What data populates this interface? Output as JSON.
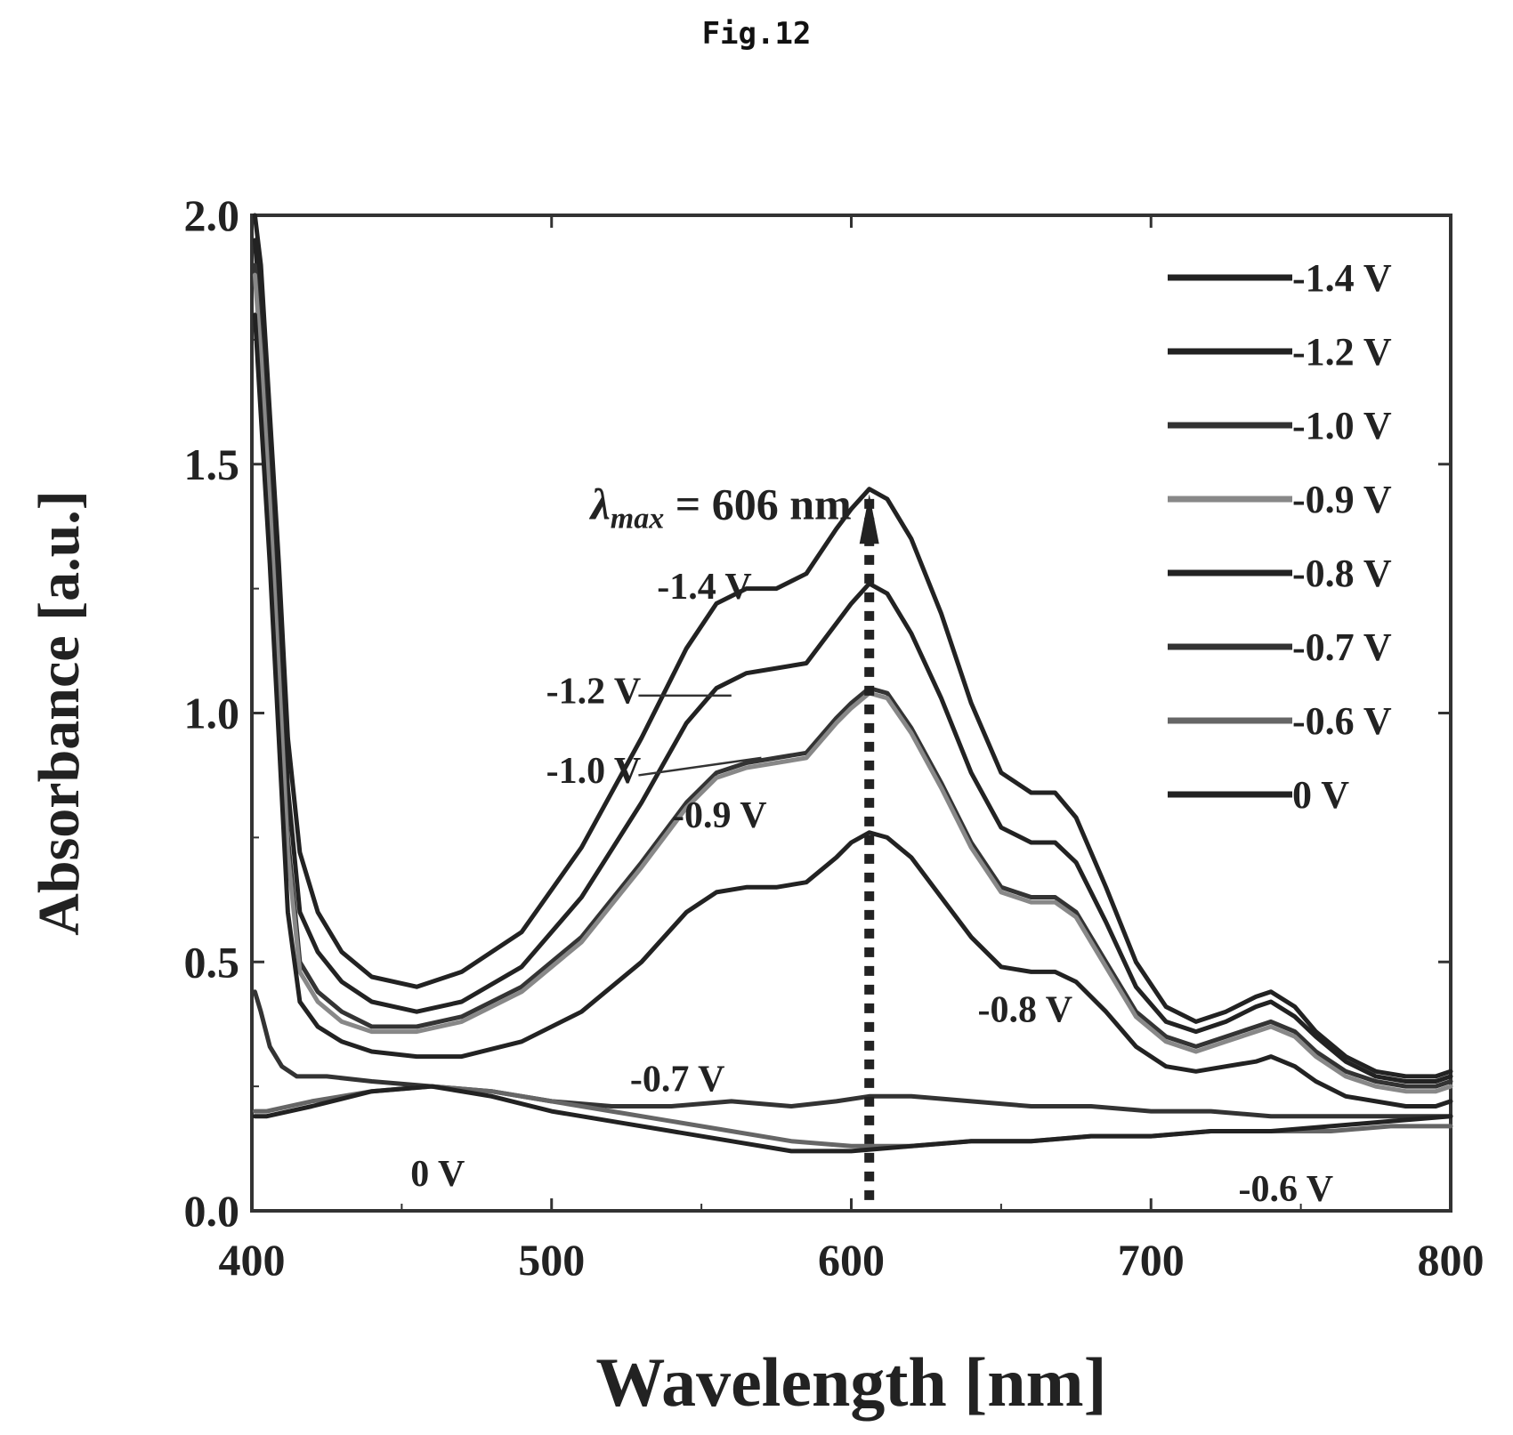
{
  "figure_title": "Fig.12",
  "chart_data": {
    "type": "line",
    "title": "",
    "xlabel": "Wavelength [nm]",
    "ylabel": "Absorbance [a.u.]",
    "xlim": [
      400,
      800
    ],
    "ylim": [
      0.0,
      2.0
    ],
    "xticks": [
      "400",
      "500",
      "600",
      "700",
      "800"
    ],
    "yticks": [
      "0.0",
      "0.5",
      "1.0",
      "1.5",
      "2.0"
    ],
    "grid": false,
    "legend_position": "top-right",
    "peak_annotation": {
      "prefix": "λ",
      "subscript": "max",
      "text": " = 606 nm",
      "x": 606
    },
    "series": [
      {
        "name": "-1.4 V",
        "color": "#222222",
        "x": [
          401,
          403,
          406,
          409,
          412,
          416,
          422,
          430,
          440,
          455,
          470,
          490,
          510,
          530,
          545,
          555,
          565,
          575,
          585,
          595,
          600,
          606,
          612,
          620,
          630,
          640,
          650,
          660,
          668,
          675,
          685,
          695,
          705,
          715,
          725,
          735,
          740,
          748,
          755,
          765,
          775,
          785,
          795,
          800
        ],
        "y": [
          2.0,
          1.9,
          1.6,
          1.3,
          0.95,
          0.72,
          0.6,
          0.52,
          0.47,
          0.45,
          0.48,
          0.56,
          0.73,
          0.95,
          1.13,
          1.22,
          1.25,
          1.25,
          1.28,
          1.37,
          1.41,
          1.45,
          1.43,
          1.35,
          1.2,
          1.02,
          0.88,
          0.84,
          0.84,
          0.79,
          0.65,
          0.5,
          0.41,
          0.38,
          0.4,
          0.43,
          0.44,
          0.41,
          0.36,
          0.31,
          0.28,
          0.27,
          0.27,
          0.28
        ]
      },
      {
        "name": "-1.2 V",
        "color": "#222222",
        "x": [
          401,
          403,
          406,
          409,
          412,
          416,
          422,
          430,
          440,
          455,
          470,
          490,
          510,
          530,
          545,
          555,
          565,
          575,
          585,
          595,
          600,
          606,
          612,
          620,
          630,
          640,
          650,
          660,
          668,
          675,
          685,
          695,
          705,
          715,
          725,
          735,
          740,
          748,
          755,
          765,
          775,
          785,
          795,
          800
        ],
        "y": [
          1.95,
          1.8,
          1.5,
          1.2,
          0.85,
          0.6,
          0.52,
          0.46,
          0.42,
          0.4,
          0.42,
          0.49,
          0.63,
          0.82,
          0.98,
          1.05,
          1.08,
          1.09,
          1.1,
          1.18,
          1.22,
          1.26,
          1.24,
          1.16,
          1.03,
          0.88,
          0.77,
          0.74,
          0.74,
          0.7,
          0.58,
          0.45,
          0.38,
          0.36,
          0.38,
          0.41,
          0.42,
          0.39,
          0.35,
          0.3,
          0.27,
          0.26,
          0.26,
          0.27
        ]
      },
      {
        "name": "-1.0 V",
        "color": "#333333",
        "x": [
          401,
          403,
          406,
          409,
          412,
          416,
          422,
          430,
          440,
          455,
          470,
          490,
          510,
          530,
          545,
          555,
          565,
          575,
          585,
          595,
          600,
          606,
          612,
          620,
          630,
          640,
          650,
          660,
          668,
          675,
          685,
          695,
          705,
          715,
          725,
          735,
          740,
          748,
          755,
          765,
          775,
          785,
          795,
          800
        ],
        "y": [
          1.9,
          1.75,
          1.45,
          1.1,
          0.75,
          0.5,
          0.44,
          0.4,
          0.37,
          0.37,
          0.39,
          0.45,
          0.55,
          0.7,
          0.82,
          0.88,
          0.9,
          0.91,
          0.92,
          0.99,
          1.02,
          1.05,
          1.04,
          0.97,
          0.86,
          0.74,
          0.65,
          0.63,
          0.63,
          0.6,
          0.5,
          0.4,
          0.35,
          0.33,
          0.35,
          0.37,
          0.38,
          0.36,
          0.32,
          0.28,
          0.26,
          0.25,
          0.25,
          0.26
        ]
      },
      {
        "name": "-0.9 V",
        "color": "#888888",
        "x": [
          401,
          403,
          406,
          409,
          412,
          416,
          422,
          430,
          440,
          455,
          470,
          490,
          510,
          530,
          545,
          555,
          565,
          575,
          585,
          595,
          600,
          606,
          612,
          620,
          630,
          640,
          650,
          660,
          668,
          675,
          685,
          695,
          705,
          715,
          725,
          735,
          740,
          748,
          755,
          765,
          775,
          785,
          795,
          800
        ],
        "y": [
          1.88,
          1.72,
          1.42,
          1.08,
          0.72,
          0.48,
          0.42,
          0.38,
          0.36,
          0.36,
          0.38,
          0.44,
          0.54,
          0.69,
          0.81,
          0.87,
          0.89,
          0.9,
          0.91,
          0.98,
          1.01,
          1.04,
          1.03,
          0.96,
          0.85,
          0.73,
          0.64,
          0.62,
          0.62,
          0.59,
          0.49,
          0.39,
          0.34,
          0.32,
          0.34,
          0.36,
          0.37,
          0.35,
          0.31,
          0.27,
          0.25,
          0.24,
          0.24,
          0.25
        ]
      },
      {
        "name": "-0.8 V",
        "color": "#222222",
        "x": [
          401,
          403,
          406,
          409,
          412,
          416,
          422,
          430,
          440,
          455,
          470,
          490,
          510,
          530,
          545,
          555,
          565,
          575,
          585,
          595,
          600,
          606,
          612,
          620,
          630,
          640,
          650,
          660,
          668,
          675,
          685,
          695,
          705,
          715,
          725,
          735,
          740,
          748,
          755,
          765,
          775,
          785,
          795,
          800
        ],
        "y": [
          1.8,
          1.6,
          1.3,
          0.95,
          0.6,
          0.42,
          0.37,
          0.34,
          0.32,
          0.31,
          0.31,
          0.34,
          0.4,
          0.5,
          0.6,
          0.64,
          0.65,
          0.65,
          0.66,
          0.71,
          0.74,
          0.76,
          0.75,
          0.71,
          0.63,
          0.55,
          0.49,
          0.48,
          0.48,
          0.46,
          0.4,
          0.33,
          0.29,
          0.28,
          0.29,
          0.3,
          0.31,
          0.29,
          0.26,
          0.23,
          0.22,
          0.21,
          0.21,
          0.22
        ]
      },
      {
        "name": "-0.7 V",
        "color": "#333333",
        "x": [
          401,
          403,
          406,
          410,
          415,
          425,
          440,
          460,
          480,
          500,
          520,
          540,
          560,
          580,
          595,
          606,
          620,
          640,
          660,
          680,
          700,
          720,
          740,
          760,
          780,
          800
        ],
        "y": [
          0.44,
          0.4,
          0.33,
          0.29,
          0.27,
          0.27,
          0.26,
          0.25,
          0.24,
          0.22,
          0.21,
          0.21,
          0.22,
          0.21,
          0.22,
          0.23,
          0.23,
          0.22,
          0.21,
          0.21,
          0.2,
          0.2,
          0.19,
          0.19,
          0.19,
          0.19
        ]
      },
      {
        "name": "-0.6 V",
        "color": "#666666",
        "x": [
          401,
          405,
          420,
          440,
          460,
          480,
          500,
          520,
          540,
          560,
          580,
          600,
          620,
          640,
          660,
          680,
          700,
          720,
          740,
          760,
          780,
          800
        ],
        "y": [
          0.2,
          0.2,
          0.22,
          0.24,
          0.25,
          0.24,
          0.22,
          0.2,
          0.18,
          0.16,
          0.14,
          0.13,
          0.13,
          0.14,
          0.14,
          0.15,
          0.15,
          0.16,
          0.16,
          0.16,
          0.17,
          0.17
        ]
      },
      {
        "name": "0 V",
        "color": "#222222",
        "x": [
          401,
          405,
          420,
          440,
          460,
          480,
          500,
          520,
          540,
          560,
          580,
          590,
          600,
          620,
          640,
          660,
          680,
          700,
          720,
          740,
          760,
          780,
          800
        ],
        "y": [
          0.19,
          0.19,
          0.21,
          0.24,
          0.25,
          0.23,
          0.2,
          0.18,
          0.16,
          0.14,
          0.12,
          0.12,
          0.12,
          0.13,
          0.14,
          0.14,
          0.15,
          0.15,
          0.16,
          0.16,
          0.17,
          0.18,
          0.19
        ]
      }
    ],
    "curve_annotations": [
      {
        "text": "-1.4 V",
        "x": 551,
        "y": 1.23
      },
      {
        "text": "-1.2 V",
        "x": 514,
        "y": 1.02
      },
      {
        "text": "-1.0 V",
        "x": 514,
        "y": 0.86
      },
      {
        "text": "-0.9 V",
        "x": 556,
        "y": 0.77
      },
      {
        "text": "-0.8 V",
        "x": 658,
        "y": 0.38
      },
      {
        "text": "-0.7 V",
        "x": 542,
        "y": 0.24
      },
      {
        "text": "0 V",
        "x": 462,
        "y": 0.05
      },
      {
        "text": "-0.6 V",
        "x": 745,
        "y": 0.02
      }
    ]
  }
}
